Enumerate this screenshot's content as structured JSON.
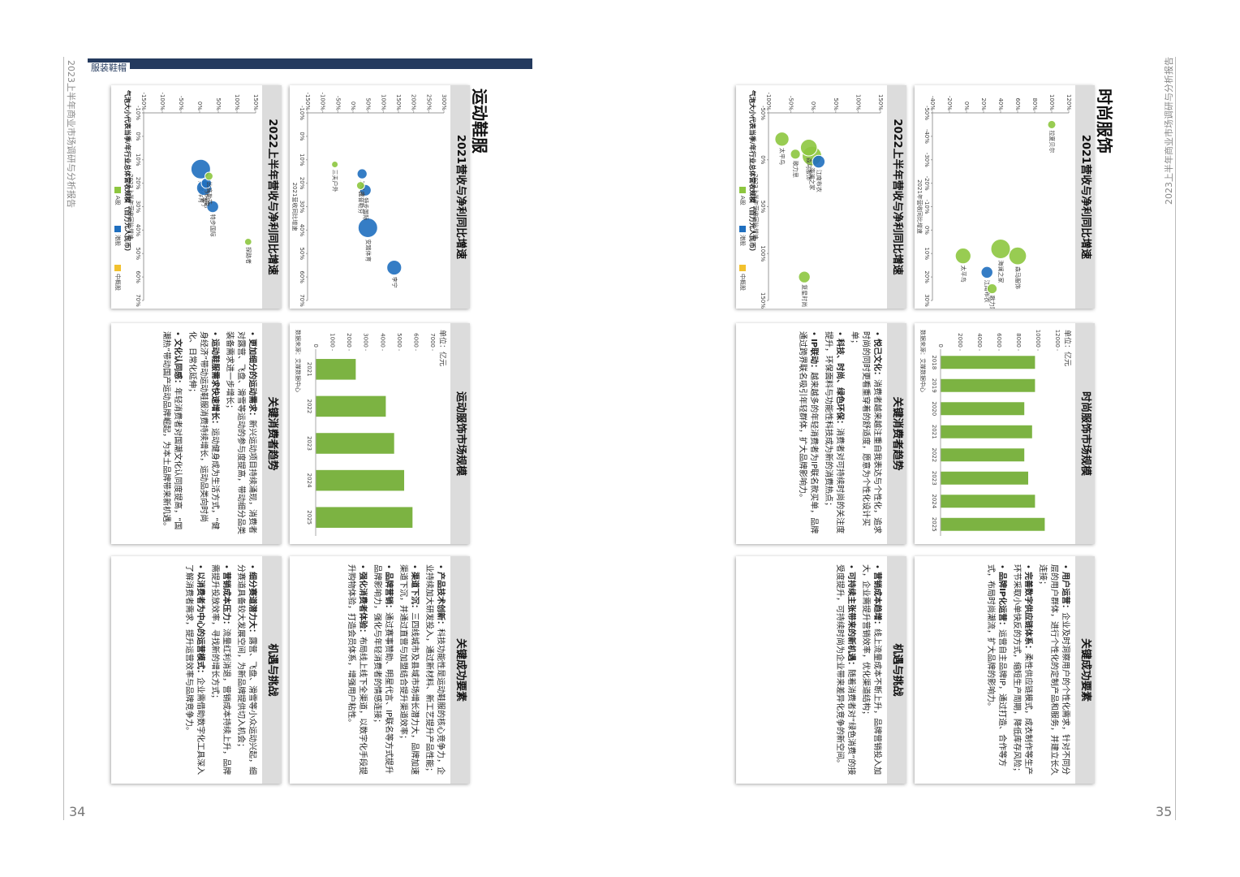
{
  "pages": [
    {
      "header": "服装鞋帽",
      "running_title": "2023上半年商业市场调研与分析报告",
      "page_number": "34",
      "section_title": "运动鞋服",
      "scatter_2021": {
        "title": "2021营收与净利同比增速",
        "x_label": "2021营收同比增速",
        "xlim": [
          -10,
          70
        ],
        "xticks": [
          {
            "value": -10,
            "label": "-10%"
          },
          {
            "value": 0,
            "label": "0%"
          },
          {
            "value": 10,
            "label": "10%"
          },
          {
            "value": 20,
            "label": "20%"
          },
          {
            "value": 30,
            "label": "30%"
          },
          {
            "value": 40,
            "label": "40%"
          },
          {
            "value": 50,
            "label": "50%"
          },
          {
            "value": 60,
            "label": "60%"
          },
          {
            "value": 70,
            "label": "70%"
          }
        ],
        "ylim": [
          -150,
          300
        ],
        "yticks": [
          {
            "value": -150,
            "label": "-150%"
          },
          {
            "value": -100,
            "label": "-100%"
          },
          {
            "value": -50,
            "label": "-50%"
          },
          {
            "value": 0,
            "label": "0%"
          },
          {
            "value": 50,
            "label": "50%"
          },
          {
            "value": 100,
            "label": "100%"
          },
          {
            "value": 150,
            "label": "150%"
          },
          {
            "value": 200,
            "label": "200%"
          },
          {
            "value": 250,
            "label": "250%"
          },
          {
            "value": 300,
            "label": "300%"
          }
        ],
        "points": [
          {
            "name": "安踏体育",
            "x": 39,
            "y": 49,
            "size": 49300,
            "color": "#1f6fbf"
          },
          {
            "name": "李宁",
            "x": 56,
            "y": 136,
            "size": 22500,
            "color": "#1f6fbf"
          },
          {
            "name": "特步国际",
            "x": 23,
            "y": 41,
            "size": 10000,
            "color": "#1f6fbf"
          },
          {
            "name": "361度",
            "x": 16,
            "y": 30,
            "size": 6000,
            "color": "#1f6fbf"
          },
          {
            "name": "比音勒芬",
            "x": 21,
            "y": 25,
            "size": 2300,
            "color": "#8dc63f"
          },
          {
            "name": "三夫户外",
            "x": 12,
            "y": -60,
            "size": 600,
            "color": "#8dc63f"
          }
        ]
      },
      "scatter_2022": {
        "title": "2022上半年营收与净利同比增速",
        "x_label": "2022上半年营收同比增速",
        "xlim": [
          -10,
          70
        ],
        "xticks": [
          {
            "value": -10,
            "label": "-10%"
          },
          {
            "value": 0,
            "label": "0%"
          },
          {
            "value": 10,
            "label": "10%"
          },
          {
            "value": 20,
            "label": "20%"
          },
          {
            "value": 30,
            "label": "30%"
          },
          {
            "value": 40,
            "label": "40%"
          },
          {
            "value": 50,
            "label": "50%"
          },
          {
            "value": 60,
            "label": "60%"
          },
          {
            "value": 70,
            "label": "70%"
          }
        ],
        "ylim": [
          -150,
          150
        ],
        "yticks": [
          {
            "value": -150,
            "label": "-150%"
          },
          {
            "value": -100,
            "label": "-100%"
          },
          {
            "value": -50,
            "label": "-50%"
          },
          {
            "value": 0,
            "label": "0%"
          },
          {
            "value": 50,
            "label": "50%"
          },
          {
            "value": 100,
            "label": "100%"
          },
          {
            "value": 150,
            "label": "150%"
          }
        ],
        "points": [
          {
            "name": "安踏体育",
            "x": 14,
            "y": 3,
            "size": 25900,
            "color": "#1f6fbf"
          },
          {
            "name": "李宁",
            "x": 22,
            "y": 12,
            "size": 12400,
            "color": "#1f6fbf"
          },
          {
            "name": "特步国际",
            "x": 30,
            "y": 35,
            "size": 5900,
            "color": "#1f6fbf"
          },
          {
            "name": "361度",
            "x": 20,
            "y": 18,
            "size": 3400,
            "color": "#1f6fbf"
          },
          {
            "name": "比音勒芬",
            "x": 17,
            "y": 25,
            "size": 1200,
            "color": "#8dc63f"
          },
          {
            "name": "探路者",
            "x": 45,
            "y": 130,
            "size": 600,
            "color": "#8dc63f"
          }
        ],
        "note": "气泡大小代表当季/年行业总体营收规模（百万元人民币）",
        "legend": [
          {
            "name": "A股",
            "color": "#8dc63f"
          },
          {
            "name": "港股",
            "color": "#1f6fbf"
          },
          {
            "name": "中概股",
            "color": "#f2c12e"
          }
        ]
      },
      "market": {
        "title": "运动服饰市场规模",
        "unit": "单位：亿元",
        "categories": [
          "2021",
          "2022",
          "2023",
          "2024",
          "2025"
        ],
        "values": [
          2400,
          4200,
          4700,
          5300,
          5800
        ],
        "color": "#7cb342",
        "ylim": [
          0,
          7000
        ],
        "yticks": [
          0,
          1000,
          2000,
          3000,
          4000,
          5000,
          6000,
          7000
        ],
        "source": "数据来源：艾媒数据中心"
      },
      "trends": {
        "title": "关键消费者趋势",
        "items": [
          {
            "bold": "更加细分的运动需求：",
            "text": "新兴运动项目持续涌现，消费者对露营、飞盘、滑雪等运动的参与度提高，带动细分品类装备需求进一步增长；"
          },
          {
            "bold": "运动鞋服需求快速增长：",
            "text": "运动健身成为生活方式，“健身经济”带动运动鞋服消费持续增长，运动品类向时尚化、日常化延伸；"
          },
          {
            "bold": "文化认同感：",
            "text": "年轻消费者对国潮文化认同度提高，“国潮热”带动国产运动品牌崛起，为本土品牌带来新机遇。"
          }
        ]
      },
      "success": {
        "title": "关键成功要素",
        "items": [
          {
            "bold": "产品技术创新：",
            "text": "科技功能性是运动鞋服的核心竞争力，企业持续加大研发投入，通过新材料、新工艺提升产品性能；"
          },
          {
            "bold": "渠道下沉：",
            "text": "三四线城市及县域市场增长潜力大，品牌加速渠道下沉，并通过直营与加盟结合提升渠道效率；"
          },
          {
            "bold": "品牌营销：",
            "text": "通过赛事赞助、明星代言、IP联名等方式提升品牌影响力，强化与年轻消费者的情感连接；"
          },
          {
            "bold": "强化消费者体验：",
            "text": "布局线上线下全渠道，以数字化手段提升购物体验，打造会员体系，增强用户粘性。"
          }
        ]
      },
      "challenges": {
        "title": "机遇与挑战",
        "items": [
          {
            "bold": "细分赛道潜力大：",
            "text": "露营、飞盘、滑雪等小众运动兴起，细分赛道具备较大发展空间，为新品牌提供切入机会；"
          },
          {
            "bold": "营销成本压力：",
            "text": "流量红利消退，营销成本持续上升，品牌需提升投放效率，寻找新的增长方式；"
          },
          {
            "bold": "以消费者为中心的运营模式：",
            "text": "企业需借助数字化工具深入了解消费者需求，提升运营效率与品牌竞争力。"
          }
        ]
      }
    },
    {
      "running_title": "2023上半年商业市场调研与分析报告",
      "page_number": "35",
      "section_title": "时尚服饰",
      "scatter_2021": {
        "title": "2021营收与净利同比增速",
        "x_label": "2021年营收同比增速",
        "xlim": [
          -50,
          30
        ],
        "xticks": [
          {
            "value": -50,
            "label": "-50%"
          },
          {
            "value": -40,
            "label": "-40%"
          },
          {
            "value": -30,
            "label": "-30%"
          },
          {
            "value": -20,
            "label": "-20%"
          },
          {
            "value": -10,
            "label": "-10%"
          },
          {
            "value": 0,
            "label": "0%"
          },
          {
            "value": 10,
            "label": "10%"
          },
          {
            "value": 20,
            "label": "20%"
          },
          {
            "value": 30,
            "label": "30%"
          }
        ],
        "ylim": [
          -40,
          120
        ],
        "yticks": [
          {
            "value": -40,
            "label": "-40%"
          },
          {
            "value": -20,
            "label": "-20%"
          },
          {
            "value": 0,
            "label": "0%"
          },
          {
            "value": 20,
            "label": "20%"
          },
          {
            "value": 40,
            "label": "40%"
          },
          {
            "value": 60,
            "label": "60%"
          },
          {
            "value": 80,
            "label": "80%"
          },
          {
            "value": 100,
            "label": "100%"
          },
          {
            "value": 120,
            "label": "120%"
          }
        ],
        "points": [
          {
            "name": "森马服饰",
            "x": 11,
            "y": 60,
            "size": 15400,
            "color": "#8dc63f"
          },
          {
            "name": "海澜之家",
            "x": 8,
            "y": 40,
            "size": 20200,
            "color": "#8dc63f"
          },
          {
            "name": "太平鸟",
            "x": 11,
            "y": -4,
            "size": 10900,
            "color": "#8dc63f"
          },
          {
            "name": "江南布衣",
            "x": 18,
            "y": 24,
            "size": 4500,
            "color": "#1f6fbf"
          },
          {
            "name": "歌力思",
            "x": 25,
            "y": 30,
            "size": 2400,
            "color": "#8dc63f"
          },
          {
            "name": "拉夏贝尔",
            "x": -45,
            "y": 100,
            "size": 1000,
            "color": "#8dc63f"
          }
        ]
      },
      "scatter_2022": {
        "title": "2022上半年营收与净利同比增速",
        "x_label": "2022上半年营收同比增速",
        "xlim": [
          -50,
          150
        ],
        "xticks": [
          {
            "value": -50,
            "label": "-50%"
          },
          {
            "value": 0,
            "label": "0%"
          },
          {
            "value": 50,
            "label": "50%"
          },
          {
            "value": 100,
            "label": "100%"
          },
          {
            "value": 150,
            "label": "150%"
          }
        ],
        "ylim": [
          -100,
          150
        ],
        "yticks": [
          {
            "value": -100,
            "label": "-100%"
          },
          {
            "value": -50,
            "label": "-50%"
          },
          {
            "value": 0,
            "label": "0%"
          },
          {
            "value": 50,
            "label": "50%"
          },
          {
            "value": 100,
            "label": "100%"
          },
          {
            "value": 150,
            "label": "150%"
          }
        ],
        "points": [
          {
            "name": "海澜之家",
            "x": -4,
            "y": -3,
            "size": 9300,
            "color": "#8dc63f"
          },
          {
            "name": "森马服饰",
            "x": -13,
            "y": -10,
            "size": 6100,
            "color": "#8dc63f"
          },
          {
            "name": "太平鸟",
            "x": -22,
            "y": -70,
            "size": 3700,
            "color": "#8dc63f"
          },
          {
            "name": "江南布衣",
            "x": 2,
            "y": 12,
            "size": 2600,
            "color": "#1f6fbf"
          },
          {
            "name": "歌力思",
            "x": -6,
            "y": -40,
            "size": 1100,
            "color": "#8dc63f"
          },
          {
            "name": "复星时尚",
            "x": 125,
            "y": -20,
            "size": 2000,
            "color": "#8dc63f"
          }
        ],
        "note": "气泡大小代表当季/年行业总体营收规模（百万元人民币）",
        "legend": [
          {
            "name": "A股",
            "color": "#8dc63f"
          },
          {
            "name": "港股",
            "color": "#1f6fbf"
          },
          {
            "name": "中概股",
            "color": "#f2c12e"
          }
        ]
      },
      "market": {
        "title": "时尚服饰市场规模",
        "unit": "单位：亿元",
        "categories": [
          "2018",
          "2019",
          "2020",
          "2021",
          "2022",
          "2023",
          "2024",
          "2025"
        ],
        "values": [
          9700,
          9700,
          8600,
          9400,
          8600,
          9000,
          9700,
          10700
        ],
        "color": "#7cb342",
        "ylim": [
          0,
          12000
        ],
        "yticks": [
          0,
          2000,
          4000,
          6000,
          8000,
          10000,
          12000
        ],
        "source": "数据来源：艾媒数据中心"
      },
      "trends": {
        "title": "关键消费者趋势",
        "items": [
          {
            "bold": "悦己文化：",
            "text": "消费者越来越注重自我表达与个性化，追求时尚的同时更看重穿着的舒适度，愿意为个性化设计买单；"
          },
          {
            "bold": "科技、时尚、绿色环保：",
            "text": "消费者对可持续时尚的关注度提升，环保面料与功能性科技成为新的消费热点；"
          },
          {
            "bold": "IP联动：",
            "text": "越来越多的年轻消费者为IP联名款买单，品牌通过跨界联名吸引年轻群体，扩大品牌影响力。"
          }
        ]
      },
      "success": {
        "title": "关键成功要素",
        "items": [
          {
            "bold": "用户运营：",
            "text": "企业及时洞察用户的个性化需求，针对不同分层的用户群体，进行个性化的定制产品和服务，并建立长久连接；"
          },
          {
            "bold": "完善数字供应链体系：",
            "text": "柔性供应链模式，成衣制作等生产环节采取小单快反的方式，缩短生产周期，降低库存风险；"
          },
          {
            "bold": "品牌IP化运营：",
            "text": "运营自主品牌IP，通过打造、合作等方式，布局时尚潮流，扩大品牌的影响力。"
          }
        ]
      },
      "challenges": {
        "title": "机遇与挑战",
        "items": [
          {
            "bold": "营销成本趋增：",
            "text": "线上流量成本不断上升，品牌营销投入加大，企业需提升营销效率，优化渠道结构；"
          },
          {
            "bold": "可持续主张带来的新机遇：",
            "text": "随着消费者对“绿色消费”的接受度提升，可持续时尚为企业带来差异化竞争的新空间。"
          }
        ]
      }
    }
  ]
}
